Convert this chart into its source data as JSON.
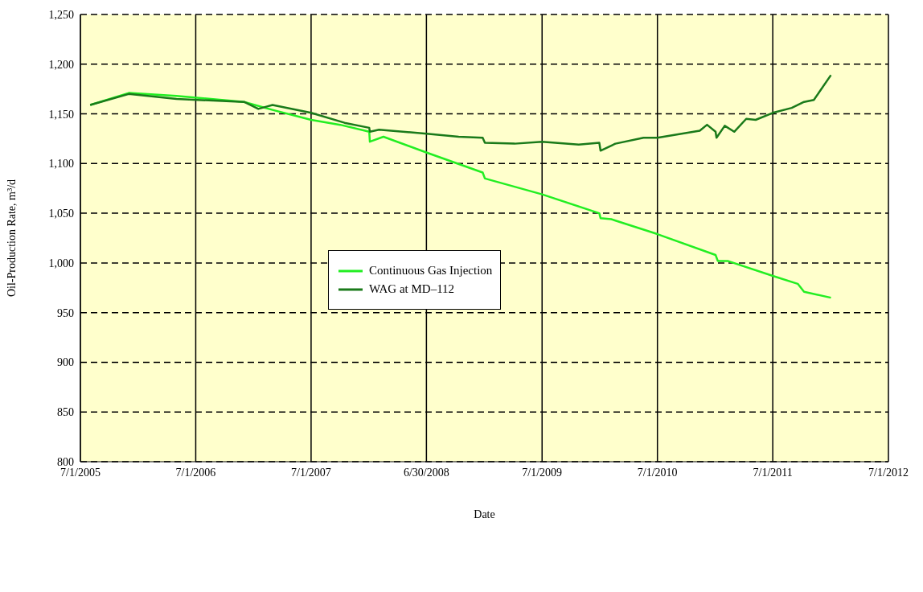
{
  "chart_data": {
    "type": "line",
    "xlabel": "Date",
    "ylabel": "Oil-Production Rate, m³/d",
    "xlim": [
      "2005-07-01",
      "2012-07-01"
    ],
    "xticks": [
      {
        "value": "2005-07-01",
        "label": "7/1/2005"
      },
      {
        "value": "2006-07-01",
        "label": "7/1/2006"
      },
      {
        "value": "2007-07-01",
        "label": "7/1/2007"
      },
      {
        "value": "2008-06-30",
        "label": "6/30/2008"
      },
      {
        "value": "2009-07-01",
        "label": "7/1/2009"
      },
      {
        "value": "2010-07-01",
        "label": "7/1/2010"
      },
      {
        "value": "2011-07-01",
        "label": "7/1/2011"
      },
      {
        "value": "2012-07-01",
        "label": "7/1/2012"
      }
    ],
    "ylim": [
      800,
      1250
    ],
    "yticks": [
      800,
      850,
      900,
      950,
      {
        "value": 1000,
        "label": "1,000"
      },
      {
        "value": 1050,
        "label": "1,050"
      },
      {
        "value": 1100,
        "label": "1,100"
      },
      {
        "value": 1150,
        "label": "1,150"
      },
      {
        "value": 1200,
        "label": "1,200"
      },
      {
        "value": 1250,
        "label": "1,250"
      }
    ],
    "grid": true,
    "legend": "center",
    "marker": "none",
    "line_style": "solid",
    "series": [
      {
        "name": "Continuous Gas Injection",
        "color": "#22ee22",
        "x": [
          "2005-08-01",
          "2005-12-01",
          "2006-05-01",
          "2006-12-01",
          "2007-03-01",
          "2007-07-01",
          "2007-10-01",
          "2008-01-01",
          "2008-01-03",
          "2008-02-15",
          "2008-07-01",
          "2008-12-25",
          "2009-01-01",
          "2009-07-01",
          "2009-12-29",
          "2010-01-02",
          "2010-02-05",
          "2010-07-01",
          "2011-01-01",
          "2011-01-08",
          "2011-02-08",
          "2011-07-01",
          "2011-09-18",
          "2011-10-08",
          "2012-01-01"
        ],
        "values": [
          1159,
          1171,
          1168,
          1162,
          1154,
          1144,
          1139,
          1132,
          1122,
          1127,
          1111,
          1091,
          1085,
          1069,
          1050,
          1045,
          1044,
          1029,
          1008,
          1002,
          1002,
          987,
          979,
          971,
          965
        ]
      },
      {
        "name": "WAG at MD–112",
        "color": "#1a7a1a",
        "x": [
          "2005-08-01",
          "2005-12-01",
          "2006-05-01",
          "2006-12-01",
          "2007-01-15",
          "2007-02-07",
          "2007-03-01",
          "2007-07-01",
          "2007-10-15",
          "2008-01-01",
          "2008-01-03",
          "2008-02-01",
          "2008-07-01",
          "2008-10-10",
          "2008-12-25",
          "2009-01-01",
          "2009-04-05",
          "2009-07-01",
          "2009-10-25",
          "2009-12-29",
          "2010-01-02",
          "2010-02-18",
          "2010-05-18",
          "2010-07-01",
          "2010-11-12",
          "2010-12-05",
          "2011-01-01",
          "2011-01-04",
          "2011-01-30",
          "2011-03-01",
          "2011-04-08",
          "2011-05-08",
          "2011-07-01",
          "2011-08-30",
          "2011-10-08",
          "2011-11-08",
          "2012-01-01"
        ],
        "values": [
          1159,
          1170,
          1165,
          1162,
          1155,
          1157,
          1159,
          1151,
          1141,
          1136,
          1132,
          1134,
          1130,
          1127,
          1126,
          1121,
          1120,
          1122,
          1119,
          1121,
          1113,
          1120,
          1126,
          1126,
          1133,
          1139,
          1132,
          1126,
          1138,
          1132,
          1145,
          1144,
          1151,
          1156,
          1162,
          1164,
          1189
        ]
      }
    ]
  }
}
